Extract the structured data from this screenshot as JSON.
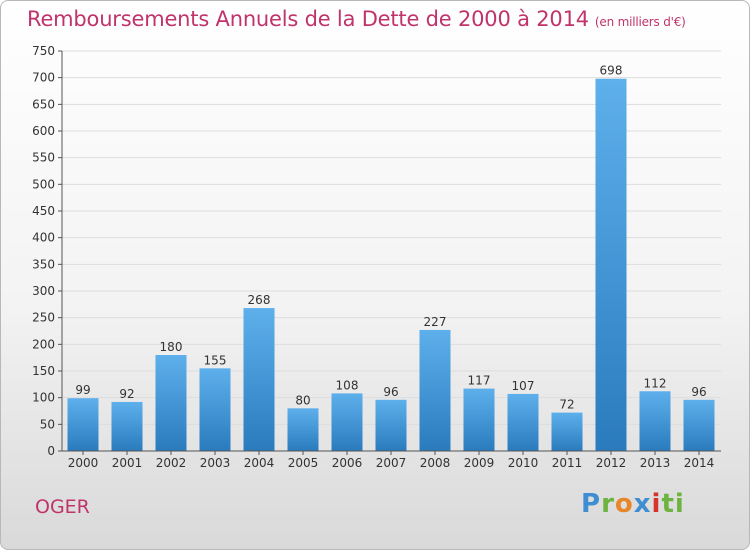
{
  "title": "Remboursements Annuels de la Dette de 2000 à 2014",
  "title_unit": "(en milliers d'€)",
  "commune": "OGER",
  "brand_letters": [
    "P",
    "r",
    "o",
    "x",
    "i",
    "ti"
  ],
  "colors": {
    "title": "#c0336b",
    "bar_top": "#5eb0ec",
    "bar_bottom": "#2a7bbd",
    "grid": "#dddddd"
  },
  "chart_data": {
    "type": "bar",
    "categories": [
      "2000",
      "2001",
      "2002",
      "2003",
      "2004",
      "2005",
      "2006",
      "2007",
      "2008",
      "2009",
      "2010",
      "2011",
      "2012",
      "2013",
      "2014"
    ],
    "values": [
      99,
      92,
      180,
      155,
      268,
      80,
      108,
      96,
      227,
      117,
      107,
      72,
      698,
      112,
      96
    ],
    "ylim": [
      0,
      750
    ],
    "yticks": [
      0,
      50,
      100,
      150,
      200,
      250,
      300,
      350,
      400,
      450,
      500,
      550,
      600,
      650,
      700,
      750
    ],
    "grid": true,
    "legend": "none"
  }
}
